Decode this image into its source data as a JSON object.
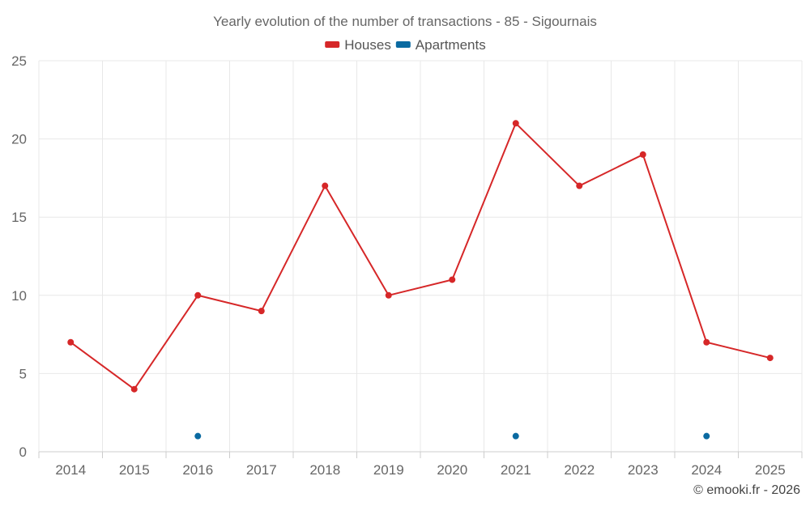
{
  "chart_data": {
    "type": "line",
    "title": "Yearly evolution of the number of transactions - 85 - Sigournais",
    "categories": [
      "2014",
      "2015",
      "2016",
      "2017",
      "2018",
      "2019",
      "2020",
      "2021",
      "2022",
      "2023",
      "2024",
      "2025"
    ],
    "series": [
      {
        "name": "Houses",
        "color": "#d62728",
        "values": [
          7,
          4,
          10,
          9,
          17,
          10,
          11,
          21,
          17,
          19,
          7,
          6
        ],
        "line": true
      },
      {
        "name": "Apartments",
        "color": "#0a6aa1",
        "values": [
          null,
          null,
          1,
          null,
          null,
          null,
          null,
          1,
          null,
          null,
          1,
          null
        ],
        "line": false
      }
    ],
    "ylim": [
      0,
      25
    ],
    "yticks": [
      0,
      5,
      10,
      15,
      20,
      25
    ],
    "xlabel": "",
    "ylabel": "",
    "grid": true,
    "legend_position": "top-center"
  },
  "credit": "© emooki.fr - 2026"
}
